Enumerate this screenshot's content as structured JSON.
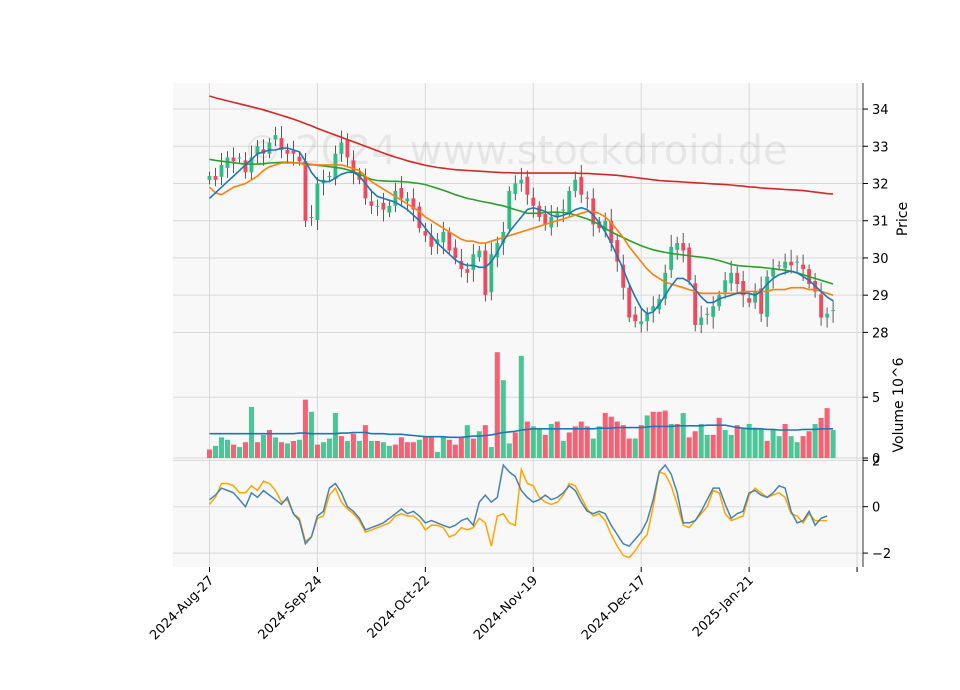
{
  "watermark": "© 2024 www.stockdroid.de",
  "colors": {
    "up": "#2ebd85",
    "down": "#f6465d",
    "ma_short": "#1f77b4",
    "ma_mid": "#ff7f0e",
    "ma_50": "#2ca02c",
    "ma_200": "#d62728",
    "vol_ma": "#1f77b4",
    "osc_a": "#4682b4",
    "osc_b": "#ffa500",
    "panel_bg": "#f8f8f8",
    "grid": "#d9d9d9"
  },
  "chart_data": {
    "type": "candlestick",
    "x_tick_labels": [
      "2024-Aug-27",
      "2024-Sep-24",
      "2024-Oct-22",
      "2024-Nov-19",
      "2024-Dec-17",
      "2025-Jan-21"
    ],
    "price_panel": {
      "ylabel": "Price",
      "y_ticks": [
        28,
        29,
        30,
        31,
        32,
        33,
        34
      ],
      "ylim": [
        27.5,
        34.7
      ],
      "closes": [
        32.2,
        32.1,
        32.5,
        32.7,
        32.6,
        32.7,
        32.3,
        32.7,
        33.0,
        32.8,
        33.1,
        33.3,
        32.9,
        32.8,
        32.8,
        32.6,
        31.0,
        31.1,
        32.0,
        32.1,
        32.2,
        32.8,
        33.1,
        32.7,
        32.3,
        32.1,
        31.6,
        31.4,
        31.4,
        31.3,
        31.4,
        31.8,
        31.6,
        31.6,
        31.3,
        30.8,
        30.6,
        30.3,
        30.5,
        30.7,
        30.2,
        30.0,
        29.7,
        29.6,
        30.1,
        30.2,
        29.0,
        30.1,
        30.4,
        30.7,
        31.8,
        32.0,
        32.1,
        31.7,
        31.4,
        31.1,
        30.9,
        31.1,
        31.2,
        31.3,
        31.8,
        32.1,
        31.7,
        31.6,
        30.9,
        30.8,
        31.0,
        30.4,
        29.9,
        29.2,
        28.4,
        28.3,
        28.3,
        28.5,
        28.7,
        28.9,
        29.6,
        30.3,
        30.4,
        30.2,
        29.4,
        28.2,
        28.4,
        28.5,
        28.7,
        29.0,
        29.4,
        29.6,
        29.3,
        29.0,
        28.8,
        29.1,
        28.5,
        29.5,
        29.7,
        29.8,
        29.9,
        29.8,
        29.9,
        29.7,
        29.3,
        29.1,
        28.4,
        28.5,
        28.6
      ],
      "ma_short": [
        31.6,
        31.75,
        31.9,
        32.05,
        32.2,
        32.35,
        32.5,
        32.65,
        32.8,
        32.85,
        32.9,
        32.9,
        32.95,
        32.95,
        32.9,
        32.85,
        32.6,
        32.3,
        32.1,
        32.05,
        32.05,
        32.15,
        32.25,
        32.3,
        32.3,
        32.2,
        32.0,
        31.8,
        31.65,
        31.6,
        31.55,
        31.5,
        31.4,
        31.3,
        31.15,
        31.0,
        30.8,
        30.6,
        30.4,
        30.25,
        30.1,
        29.95,
        29.85,
        29.8,
        29.8,
        29.75,
        29.75,
        29.9,
        30.15,
        30.45,
        30.7,
        30.9,
        31.1,
        31.3,
        31.35,
        31.3,
        31.25,
        31.15,
        31.1,
        31.15,
        31.2,
        31.3,
        31.35,
        31.3,
        31.15,
        30.95,
        30.7,
        30.4,
        30.05,
        29.7,
        29.3,
        28.95,
        28.65,
        28.5,
        28.55,
        28.75,
        29.0,
        29.25,
        29.45,
        29.45,
        29.35,
        29.15,
        28.95,
        28.8,
        28.8,
        28.9,
        28.95,
        29.0,
        29.05,
        29.05,
        29.05,
        29.0,
        29.1,
        29.3,
        29.45,
        29.55,
        29.6,
        29.65,
        29.6,
        29.5,
        29.4,
        29.25,
        29.1,
        28.95,
        28.85
      ],
      "ma_mid": [
        31.9,
        31.75,
        31.7,
        31.8,
        31.9,
        31.95,
        32.0,
        32.1,
        32.2,
        32.35,
        32.45,
        32.5,
        32.55,
        32.55,
        32.55,
        32.55,
        32.5,
        32.5,
        32.5,
        32.5,
        32.5,
        32.5,
        32.5,
        32.45,
        32.4,
        32.35,
        32.2,
        32.05,
        31.95,
        31.85,
        31.75,
        31.65,
        31.55,
        31.45,
        31.35,
        31.25,
        31.1,
        31.0,
        30.9,
        30.8,
        30.7,
        30.6,
        30.5,
        30.45,
        30.45,
        30.4,
        30.4,
        30.45,
        30.5,
        30.55,
        30.6,
        30.65,
        30.7,
        30.75,
        30.8,
        30.85,
        30.9,
        30.95,
        31.0,
        31.05,
        31.1,
        31.15,
        31.2,
        31.25,
        31.25,
        31.2,
        31.1,
        30.95,
        30.75,
        30.55,
        30.3,
        30.1,
        29.9,
        29.7,
        29.55,
        29.45,
        29.35,
        29.3,
        29.25,
        29.2,
        29.15,
        29.1,
        29.05,
        29.05,
        29.05,
        29.05,
        29.05,
        29.05,
        29.05,
        29.1,
        29.1,
        29.1,
        29.1,
        29.1,
        29.15,
        29.15,
        29.15,
        29.2,
        29.2,
        29.2,
        29.15,
        29.15,
        29.1,
        29.05,
        29.0
      ],
      "ma_50": [
        32.65,
        32.62,
        32.6,
        32.58,
        32.56,
        32.54,
        32.52,
        32.52,
        32.52,
        32.53,
        32.55,
        32.56,
        32.57,
        32.57,
        32.56,
        32.55,
        32.53,
        32.51,
        32.49,
        32.47,
        32.45,
        32.43,
        32.41,
        32.37,
        32.32,
        32.25,
        32.18,
        32.11,
        32.08,
        32.07,
        32.06,
        32.06,
        32.05,
        32.04,
        32.02,
        32.0,
        31.97,
        31.92,
        31.87,
        31.82,
        31.76,
        31.7,
        31.65,
        31.6,
        31.57,
        31.53,
        31.5,
        31.47,
        31.43,
        31.4,
        31.35,
        31.3,
        31.25,
        31.2,
        31.2,
        31.2,
        31.22,
        31.23,
        31.23,
        31.22,
        31.2,
        31.15,
        31.1,
        31.05,
        30.98,
        30.9,
        30.8,
        30.7,
        30.62,
        30.55,
        30.47,
        30.4,
        30.33,
        30.27,
        30.22,
        30.18,
        30.15,
        30.12,
        30.1,
        30.08,
        30.06,
        30.04,
        30.02,
        30.0,
        29.97,
        29.93,
        29.88,
        29.83,
        29.8,
        29.78,
        29.77,
        29.76,
        29.75,
        29.73,
        29.71,
        29.69,
        29.67,
        29.64,
        29.6,
        29.55,
        29.5,
        29.45,
        29.4,
        29.35,
        29.3
      ],
      "ma_200": [
        34.35,
        34.3,
        34.26,
        34.22,
        34.18,
        34.14,
        34.1,
        34.06,
        34.02,
        33.98,
        33.93,
        33.88,
        33.83,
        33.78,
        33.73,
        33.67,
        33.61,
        33.55,
        33.48,
        33.42,
        33.36,
        33.3,
        33.24,
        33.18,
        33.12,
        33.06,
        33.0,
        32.94,
        32.88,
        32.82,
        32.76,
        32.71,
        32.66,
        32.61,
        32.57,
        32.53,
        32.49,
        32.46,
        32.43,
        32.41,
        32.39,
        32.37,
        32.36,
        32.35,
        32.34,
        32.33,
        32.32,
        32.31,
        32.3,
        32.29,
        32.29,
        32.28,
        32.28,
        32.28,
        32.28,
        32.28,
        32.28,
        32.28,
        32.28,
        32.28,
        32.28,
        32.28,
        32.27,
        32.27,
        32.26,
        32.25,
        32.24,
        32.23,
        32.22,
        32.2,
        32.18,
        32.16,
        32.14,
        32.12,
        32.1,
        32.08,
        32.07,
        32.06,
        32.05,
        32.04,
        32.03,
        32.02,
        32.01,
        32.0,
        31.99,
        31.98,
        31.97,
        31.96,
        31.94,
        31.93,
        31.91,
        31.9,
        31.88,
        31.87,
        31.86,
        31.85,
        31.84,
        31.83,
        31.82,
        31.81,
        31.79,
        31.77,
        31.75,
        31.73,
        31.72
      ]
    },
    "volume_panel": {
      "ylabel": "Volume  10^6",
      "y_ticks": [
        0,
        5
      ],
      "ylim": [
        0,
        8.8
      ],
      "values": [
        0.7,
        1.0,
        1.7,
        1.5,
        1.1,
        0.9,
        1.3,
        4.2,
        1.3,
        1.9,
        2.3,
        1.7,
        1.3,
        1.2,
        1.4,
        1.5,
        4.8,
        3.8,
        1.1,
        1.3,
        1.6,
        3.7,
        1.8,
        1.4,
        2.0,
        1.4,
        2.7,
        1.4,
        1.4,
        1.3,
        1.0,
        1.1,
        1.7,
        1.3,
        1.3,
        1.5,
        1.8,
        1.7,
        0.5,
        1.8,
        1.5,
        1.1,
        1.7,
        2.7,
        1.6,
        2.2,
        2.7,
        0.9,
        8.7,
        6.4,
        1.2,
        2.1,
        8.4,
        3.0,
        2.6,
        2.4,
        1.9,
        2.8,
        3.0,
        1.4,
        2.1,
        2.6,
        3.0,
        2.6,
        1.6,
        2.6,
        3.7,
        3.4,
        3.0,
        2.7,
        1.6,
        1.6,
        2.7,
        3.5,
        3.8,
        3.8,
        3.9,
        2.8,
        2.8,
        3.7,
        1.7,
        2.2,
        2.8,
        1.9,
        1.9,
        3.3,
        2.3,
        1.9,
        2.7,
        2.5,
        2.8,
        2.5,
        2.4,
        1.4,
        2.3,
        1.8,
        2.8,
        1.8,
        1.3,
        1.8,
        2.2,
        2.8,
        3.3,
        4.1,
        2.3
      ],
      "ma": [
        2.0,
        2.0,
        2.0,
        2.0,
        2.0,
        2.0,
        2.0,
        2.0,
        2.0,
        2.0,
        2.0,
        2.0,
        2.0,
        2.0,
        2.0,
        2.05,
        2.05,
        2.0,
        2.0,
        2.0,
        2.0,
        2.0,
        2.05,
        2.05,
        2.1,
        2.1,
        2.1,
        2.0,
        2.0,
        2.0,
        1.95,
        1.95,
        1.95,
        1.9,
        1.85,
        1.8,
        1.75,
        1.75,
        1.75,
        1.75,
        1.7,
        1.7,
        1.7,
        1.75,
        1.8,
        1.8,
        1.85,
        1.9,
        2.0,
        2.1,
        2.15,
        2.2,
        2.3,
        2.35,
        2.4,
        2.4,
        2.4,
        2.4,
        2.4,
        2.4,
        2.4,
        2.4,
        2.4,
        2.4,
        2.4,
        2.45,
        2.45,
        2.45,
        2.5,
        2.5,
        2.5,
        2.5,
        2.5,
        2.55,
        2.6,
        2.6,
        2.6,
        2.6,
        2.65,
        2.65,
        2.65,
        2.65,
        2.65,
        2.7,
        2.7,
        2.7,
        2.7,
        2.6,
        2.5,
        2.45,
        2.4,
        2.4,
        2.4,
        2.35,
        2.35,
        2.3,
        2.3,
        2.3,
        2.3,
        2.35,
        2.35,
        2.35,
        2.4,
        2.4,
        2.4
      ],
      "vol_up": [
        false,
        true,
        true,
        true,
        false,
        true,
        false,
        true,
        false,
        true,
        false,
        true,
        false,
        true,
        false,
        true,
        false,
        true,
        false,
        true,
        true,
        true,
        false,
        true,
        false,
        true,
        false,
        true,
        false,
        true,
        true,
        false,
        false,
        false,
        false,
        true,
        false,
        false,
        true,
        true,
        false,
        false,
        false,
        true,
        false,
        true,
        false,
        true,
        false,
        true,
        true,
        false,
        true,
        false,
        true,
        true,
        false,
        true,
        false,
        true,
        false,
        false,
        false,
        false,
        true,
        true,
        false,
        false,
        false,
        false,
        false,
        true,
        false,
        true,
        false,
        false,
        false,
        true,
        false,
        true,
        false,
        false,
        true,
        true,
        false,
        false,
        true,
        true,
        false,
        true,
        true,
        true,
        true,
        false,
        true,
        true,
        false,
        true,
        true,
        false,
        false,
        true,
        false,
        false,
        true
      ]
    },
    "oscillator_panel": {
      "y_ticks": [
        -2,
        0,
        2
      ],
      "ylim": [
        -2.6,
        2.1
      ],
      "line_a": [
        0.3,
        0.5,
        0.8,
        0.7,
        0.6,
        0.3,
        0.0,
        0.6,
        0.4,
        0.7,
        0.5,
        0.3,
        0.1,
        0.4,
        -0.3,
        -0.6,
        -1.6,
        -1.3,
        -0.4,
        -0.2,
        0.8,
        1.0,
        0.6,
        0.0,
        -0.2,
        -0.5,
        -1.0,
        -0.9,
        -0.8,
        -0.7,
        -0.5,
        -0.3,
        -0.1,
        -0.3,
        -0.2,
        -0.4,
        -0.7,
        -0.6,
        -0.7,
        -0.8,
        -0.9,
        -0.8,
        -0.6,
        -0.5,
        -0.8,
        0.2,
        0.5,
        0.2,
        0.4,
        1.8,
        1.5,
        1.3,
        0.7,
        0.4,
        0.2,
        0.3,
        0.5,
        0.3,
        0.4,
        0.6,
        0.9,
        0.7,
        0.2,
        -0.2,
        -0.3,
        -0.2,
        -0.3,
        -0.8,
        -1.2,
        -1.6,
        -1.7,
        -1.4,
        -1.1,
        -0.6,
        0.3,
        1.5,
        1.8,
        1.4,
        0.6,
        -0.7,
        -0.7,
        -0.6,
        -0.2,
        0.3,
        0.8,
        0.8,
        0.1,
        -0.5,
        -0.3,
        -0.2,
        0.6,
        0.7,
        0.5,
        0.4,
        0.6,
        0.9,
        0.8,
        -0.2,
        -0.7,
        -0.6,
        -0.2,
        -0.8,
        -0.5,
        -0.4
      ],
      "line_b": [
        0.1,
        0.4,
        1.0,
        1.0,
        0.9,
        0.6,
        0.6,
        0.9,
        0.7,
        1.1,
        1.0,
        0.7,
        0.2,
        0.3,
        -0.3,
        -0.5,
        -1.5,
        -1.3,
        -0.5,
        -0.4,
        0.5,
        0.8,
        0.2,
        -0.1,
        -0.3,
        -0.6,
        -1.1,
        -1.0,
        -0.9,
        -0.8,
        -0.7,
        -0.4,
        -0.3,
        -0.4,
        -0.4,
        -0.6,
        -1.0,
        -0.8,
        -0.8,
        -0.9,
        -1.3,
        -1.2,
        -0.9,
        -1.0,
        -0.9,
        -0.5,
        -0.7,
        -1.7,
        -0.4,
        -0.3,
        -0.7,
        -0.8,
        1.6,
        1.0,
        0.9,
        0.4,
        0.2,
        0.1,
        0.2,
        0.5,
        1.0,
        0.9,
        0.4,
        -0.1,
        -0.4,
        -0.3,
        -0.6,
        -1.2,
        -1.7,
        -2.1,
        -2.2,
        -1.9,
        -1.5,
        -1.2,
        0.0,
        1.5,
        1.4,
        0.9,
        0.1,
        -0.8,
        -0.9,
        -0.6,
        -0.3,
        0.0,
        0.7,
        0.6,
        -0.3,
        -0.6,
        -0.5,
        -0.4,
        0.5,
        0.8,
        0.6,
        0.4,
        0.5,
        0.6,
        0.4,
        -0.3,
        -0.4,
        -0.7,
        -0.3,
        -0.6,
        -0.6,
        -0.6
      ]
    }
  }
}
